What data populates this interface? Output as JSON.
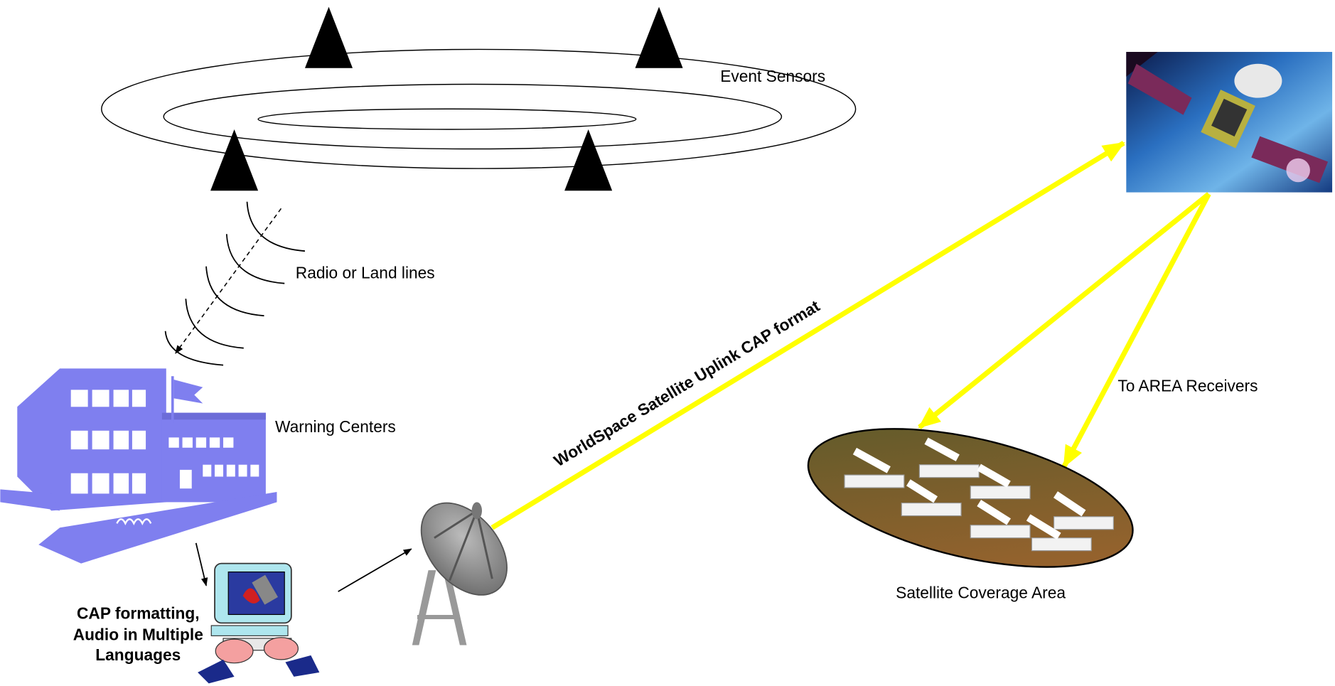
{
  "labels": {
    "event_sensors": "Event Sensors",
    "radio_land_lines": "Radio or Land lines",
    "warning_centers": "Warning Centers",
    "cap_formatting": [
      "CAP formatting,",
      "Audio in Multiple",
      "Languages"
    ],
    "uplink": "WorldSpace Satellite Uplink CAP format",
    "to_area_receivers": "To AREA Receivers",
    "coverage_area": "Satellite Coverage Area"
  }
}
